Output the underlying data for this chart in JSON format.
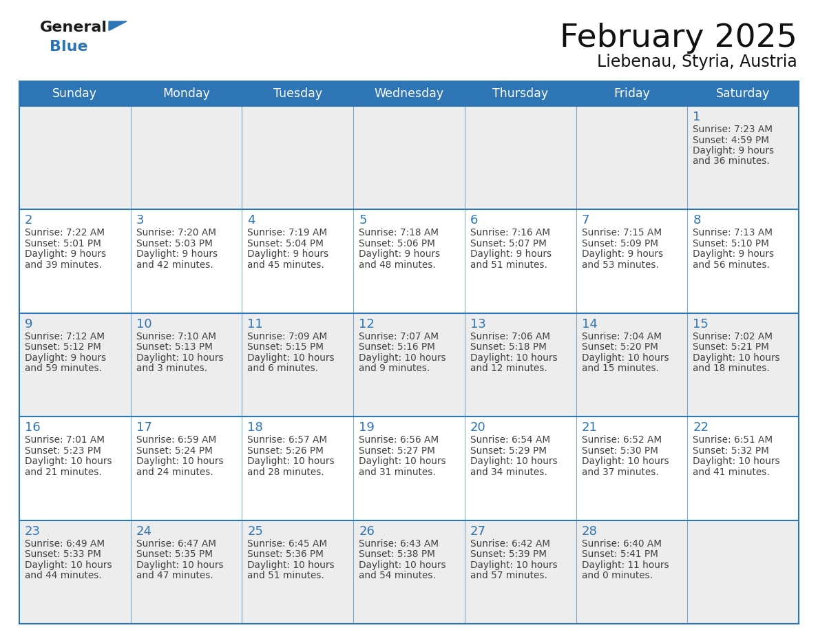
{
  "title": "February 2025",
  "subtitle": "Liebenau, Styria, Austria",
  "days_of_week": [
    "Sunday",
    "Monday",
    "Tuesday",
    "Wednesday",
    "Thursday",
    "Friday",
    "Saturday"
  ],
  "header_bg": "#2E75B6",
  "header_text_color": "#FFFFFF",
  "cell_bg_odd": "#EDEDED",
  "cell_bg_even": "#FFFFFF",
  "border_color": "#2E75B6",
  "day_number_color": "#2E75B6",
  "text_color": "#404040",
  "logo_general_color": "#1a1a1a",
  "logo_blue_color": "#2E75B6",
  "calendar": [
    [
      null,
      null,
      null,
      null,
      null,
      null,
      {
        "day": "1",
        "sunrise": "Sunrise: 7:23 AM",
        "sunset": "Sunset: 4:59 PM",
        "daylight1": "Daylight: 9 hours",
        "daylight2": "and 36 minutes."
      }
    ],
    [
      {
        "day": "2",
        "sunrise": "Sunrise: 7:22 AM",
        "sunset": "Sunset: 5:01 PM",
        "daylight1": "Daylight: 9 hours",
        "daylight2": "and 39 minutes."
      },
      {
        "day": "3",
        "sunrise": "Sunrise: 7:20 AM",
        "sunset": "Sunset: 5:03 PM",
        "daylight1": "Daylight: 9 hours",
        "daylight2": "and 42 minutes."
      },
      {
        "day": "4",
        "sunrise": "Sunrise: 7:19 AM",
        "sunset": "Sunset: 5:04 PM",
        "daylight1": "Daylight: 9 hours",
        "daylight2": "and 45 minutes."
      },
      {
        "day": "5",
        "sunrise": "Sunrise: 7:18 AM",
        "sunset": "Sunset: 5:06 PM",
        "daylight1": "Daylight: 9 hours",
        "daylight2": "and 48 minutes."
      },
      {
        "day": "6",
        "sunrise": "Sunrise: 7:16 AM",
        "sunset": "Sunset: 5:07 PM",
        "daylight1": "Daylight: 9 hours",
        "daylight2": "and 51 minutes."
      },
      {
        "day": "7",
        "sunrise": "Sunrise: 7:15 AM",
        "sunset": "Sunset: 5:09 PM",
        "daylight1": "Daylight: 9 hours",
        "daylight2": "and 53 minutes."
      },
      {
        "day": "8",
        "sunrise": "Sunrise: 7:13 AM",
        "sunset": "Sunset: 5:10 PM",
        "daylight1": "Daylight: 9 hours",
        "daylight2": "and 56 minutes."
      }
    ],
    [
      {
        "day": "9",
        "sunrise": "Sunrise: 7:12 AM",
        "sunset": "Sunset: 5:12 PM",
        "daylight1": "Daylight: 9 hours",
        "daylight2": "and 59 minutes."
      },
      {
        "day": "10",
        "sunrise": "Sunrise: 7:10 AM",
        "sunset": "Sunset: 5:13 PM",
        "daylight1": "Daylight: 10 hours",
        "daylight2": "and 3 minutes."
      },
      {
        "day": "11",
        "sunrise": "Sunrise: 7:09 AM",
        "sunset": "Sunset: 5:15 PM",
        "daylight1": "Daylight: 10 hours",
        "daylight2": "and 6 minutes."
      },
      {
        "day": "12",
        "sunrise": "Sunrise: 7:07 AM",
        "sunset": "Sunset: 5:16 PM",
        "daylight1": "Daylight: 10 hours",
        "daylight2": "and 9 minutes."
      },
      {
        "day": "13",
        "sunrise": "Sunrise: 7:06 AM",
        "sunset": "Sunset: 5:18 PM",
        "daylight1": "Daylight: 10 hours",
        "daylight2": "and 12 minutes."
      },
      {
        "day": "14",
        "sunrise": "Sunrise: 7:04 AM",
        "sunset": "Sunset: 5:20 PM",
        "daylight1": "Daylight: 10 hours",
        "daylight2": "and 15 minutes."
      },
      {
        "day": "15",
        "sunrise": "Sunrise: 7:02 AM",
        "sunset": "Sunset: 5:21 PM",
        "daylight1": "Daylight: 10 hours",
        "daylight2": "and 18 minutes."
      }
    ],
    [
      {
        "day": "16",
        "sunrise": "Sunrise: 7:01 AM",
        "sunset": "Sunset: 5:23 PM",
        "daylight1": "Daylight: 10 hours",
        "daylight2": "and 21 minutes."
      },
      {
        "day": "17",
        "sunrise": "Sunrise: 6:59 AM",
        "sunset": "Sunset: 5:24 PM",
        "daylight1": "Daylight: 10 hours",
        "daylight2": "and 24 minutes."
      },
      {
        "day": "18",
        "sunrise": "Sunrise: 6:57 AM",
        "sunset": "Sunset: 5:26 PM",
        "daylight1": "Daylight: 10 hours",
        "daylight2": "and 28 minutes."
      },
      {
        "day": "19",
        "sunrise": "Sunrise: 6:56 AM",
        "sunset": "Sunset: 5:27 PM",
        "daylight1": "Daylight: 10 hours",
        "daylight2": "and 31 minutes."
      },
      {
        "day": "20",
        "sunrise": "Sunrise: 6:54 AM",
        "sunset": "Sunset: 5:29 PM",
        "daylight1": "Daylight: 10 hours",
        "daylight2": "and 34 minutes."
      },
      {
        "day": "21",
        "sunrise": "Sunrise: 6:52 AM",
        "sunset": "Sunset: 5:30 PM",
        "daylight1": "Daylight: 10 hours",
        "daylight2": "and 37 minutes."
      },
      {
        "day": "22",
        "sunrise": "Sunrise: 6:51 AM",
        "sunset": "Sunset: 5:32 PM",
        "daylight1": "Daylight: 10 hours",
        "daylight2": "and 41 minutes."
      }
    ],
    [
      {
        "day": "23",
        "sunrise": "Sunrise: 6:49 AM",
        "sunset": "Sunset: 5:33 PM",
        "daylight1": "Daylight: 10 hours",
        "daylight2": "and 44 minutes."
      },
      {
        "day": "24",
        "sunrise": "Sunrise: 6:47 AM",
        "sunset": "Sunset: 5:35 PM",
        "daylight1": "Daylight: 10 hours",
        "daylight2": "and 47 minutes."
      },
      {
        "day": "25",
        "sunrise": "Sunrise: 6:45 AM",
        "sunset": "Sunset: 5:36 PM",
        "daylight1": "Daylight: 10 hours",
        "daylight2": "and 51 minutes."
      },
      {
        "day": "26",
        "sunrise": "Sunrise: 6:43 AM",
        "sunset": "Sunset: 5:38 PM",
        "daylight1": "Daylight: 10 hours",
        "daylight2": "and 54 minutes."
      },
      {
        "day": "27",
        "sunrise": "Sunrise: 6:42 AM",
        "sunset": "Sunset: 5:39 PM",
        "daylight1": "Daylight: 10 hours",
        "daylight2": "and 57 minutes."
      },
      {
        "day": "28",
        "sunrise": "Sunrise: 6:40 AM",
        "sunset": "Sunset: 5:41 PM",
        "daylight1": "Daylight: 11 hours",
        "daylight2": "and 0 minutes."
      },
      null
    ]
  ]
}
